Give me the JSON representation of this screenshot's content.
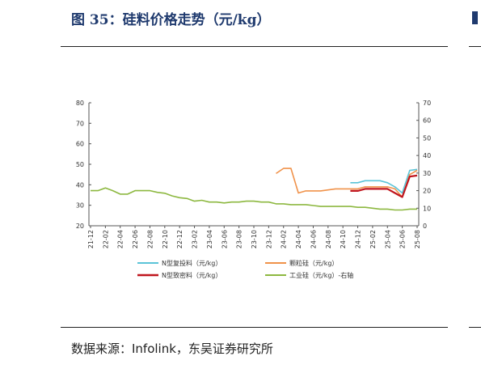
{
  "title": "图 35：硅料价格走势（元/kg）",
  "source": "数据来源：Infolink，东吴证券研究所",
  "colors": {
    "title": "#1f3a6e",
    "n_reload": "#5bc4d8",
    "granular": "#f0924a",
    "n_dense": "#c0161e",
    "industrial": "#8db840"
  },
  "chart_data": {
    "type": "line",
    "title": "",
    "x": [
      "21-12",
      "22-01",
      "22-02",
      "22-03",
      "22-04",
      "22-05",
      "22-06",
      "22-07",
      "22-08",
      "22-09",
      "22-10",
      "22-11",
      "22-12",
      "23-01",
      "23-02",
      "23-03",
      "23-04",
      "23-05",
      "23-06",
      "23-07",
      "23-08",
      "23-09",
      "23-10",
      "23-11",
      "23-12",
      "24-01",
      "24-02",
      "24-03",
      "24-04",
      "24-05",
      "24-06",
      "24-07",
      "24-08",
      "24-09",
      "24-10",
      "24-11",
      "24-12",
      "25-01",
      "25-02",
      "25-03",
      "25-04",
      "25-05",
      "25-06",
      "25-07",
      "25-08"
    ],
    "x_tick_labels": [
      "21-12",
      "22-02",
      "22-04",
      "22-06",
      "22-08",
      "22-10",
      "22-12",
      "23-02",
      "23-04",
      "23-06",
      "23-08",
      "23-10",
      "23-12",
      "24-02",
      "24-04",
      "24-06",
      "24-08",
      "24-10",
      "24-12",
      "25-02",
      "25-04",
      "25-06",
      "25-08"
    ],
    "y_left": {
      "ylim": [
        20,
        80
      ],
      "ticks": [
        20,
        30,
        40,
        50,
        60,
        70,
        80
      ]
    },
    "y_right": {
      "ylim": [
        0,
        70
      ],
      "ticks": [
        0,
        10,
        20,
        30,
        40,
        50,
        60,
        70
      ]
    },
    "legend_position": "bottom",
    "series": [
      {
        "name": "N型复投料（元/kg）",
        "axis": "left",
        "color": "#5bc4d8",
        "values": [
          null,
          null,
          null,
          null,
          null,
          null,
          null,
          null,
          null,
          null,
          null,
          null,
          null,
          null,
          null,
          null,
          null,
          null,
          null,
          null,
          null,
          null,
          null,
          null,
          null,
          null,
          null,
          null,
          null,
          null,
          null,
          null,
          null,
          null,
          null,
          41,
          41,
          42,
          42,
          42,
          41,
          39,
          36,
          47,
          47.5
        ]
      },
      {
        "name": "颗粒硅（元/kg）",
        "axis": "left",
        "color": "#f0924a",
        "values": [
          null,
          null,
          null,
          null,
          null,
          null,
          null,
          null,
          null,
          null,
          null,
          null,
          null,
          null,
          null,
          null,
          null,
          null,
          null,
          null,
          null,
          null,
          null,
          null,
          null,
          45.5,
          48,
          48,
          36,
          37,
          37,
          37,
          37.5,
          38,
          38,
          38,
          38,
          39,
          39,
          39,
          39,
          38,
          34,
          45,
          47
        ]
      },
      {
        "name": "N型致密料（元/kg）",
        "axis": "left",
        "color": "#c0161e",
        "values": [
          null,
          null,
          null,
          null,
          null,
          null,
          null,
          null,
          null,
          null,
          null,
          null,
          null,
          null,
          null,
          null,
          null,
          null,
          null,
          null,
          null,
          null,
          null,
          null,
          null,
          null,
          null,
          null,
          null,
          null,
          null,
          null,
          null,
          null,
          null,
          37,
          37,
          38,
          38,
          38,
          38,
          36,
          34,
          44,
          44.5
        ]
      },
      {
        "name": "工业硅（元/kg）-右轴",
        "axis": "right",
        "color": "#8db840",
        "values": [
          20,
          20,
          21.5,
          20,
          18,
          18,
          20,
          20,
          20,
          19,
          18.5,
          17,
          16,
          15.5,
          14,
          14.5,
          13.5,
          13.5,
          13,
          13.5,
          13.5,
          14,
          14,
          13.5,
          13.5,
          12.5,
          12.5,
          12,
          12,
          12,
          11.5,
          11,
          11,
          11,
          11,
          11,
          10.5,
          10.5,
          10,
          9.5,
          9.5,
          9,
          9,
          9.5,
          9.5
        ]
      }
    ]
  }
}
